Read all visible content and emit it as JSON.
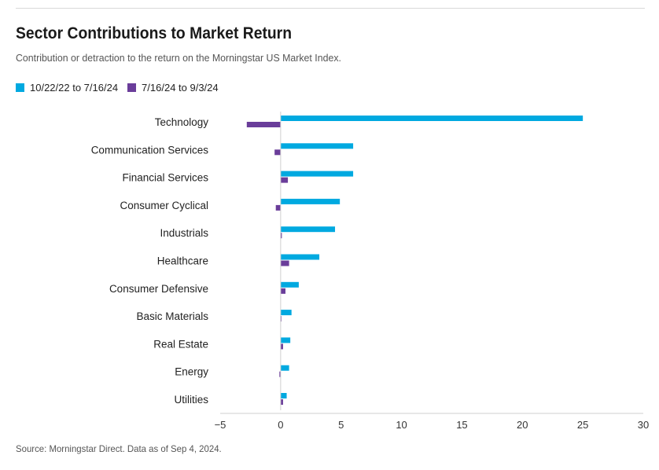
{
  "chart_data": {
    "type": "bar",
    "orientation": "horizontal",
    "title": "Sector Contributions to Market Return",
    "subtitle": "Contribution or detraction to the return on the Morningstar US Market Index.",
    "categories": [
      "Technology",
      "Communication Services",
      "Financial Services",
      "Consumer Cyclical",
      "Industrials",
      "Healthcare",
      "Consumer Defensive",
      "Basic Materials",
      "Real Estate",
      "Energy",
      "Utilities"
    ],
    "series": [
      {
        "name": "10/22/22 to 7/16/24",
        "color": "#00a9e0",
        "values": [
          25.0,
          6.0,
          6.0,
          4.9,
          4.5,
          3.2,
          1.5,
          0.9,
          0.8,
          0.7,
          0.5
        ]
      },
      {
        "name": "7/16/24 to 9/3/24",
        "color": "#6a3d9a",
        "values": [
          -2.8,
          -0.5,
          0.6,
          -0.4,
          0.1,
          0.7,
          0.4,
          0.05,
          0.2,
          -0.1,
          0.2
        ]
      }
    ],
    "xlim": [
      -5,
      30
    ],
    "xticks": [
      "−5",
      "0",
      "5",
      "10",
      "15",
      "20",
      "25",
      "30"
    ],
    "xtick_values": [
      -5,
      0,
      5,
      10,
      15,
      20,
      25,
      30
    ],
    "grid": false,
    "legend_position": "top-left"
  },
  "source": "Source: Morningstar Direct. Data as of Sep 4, 2024."
}
